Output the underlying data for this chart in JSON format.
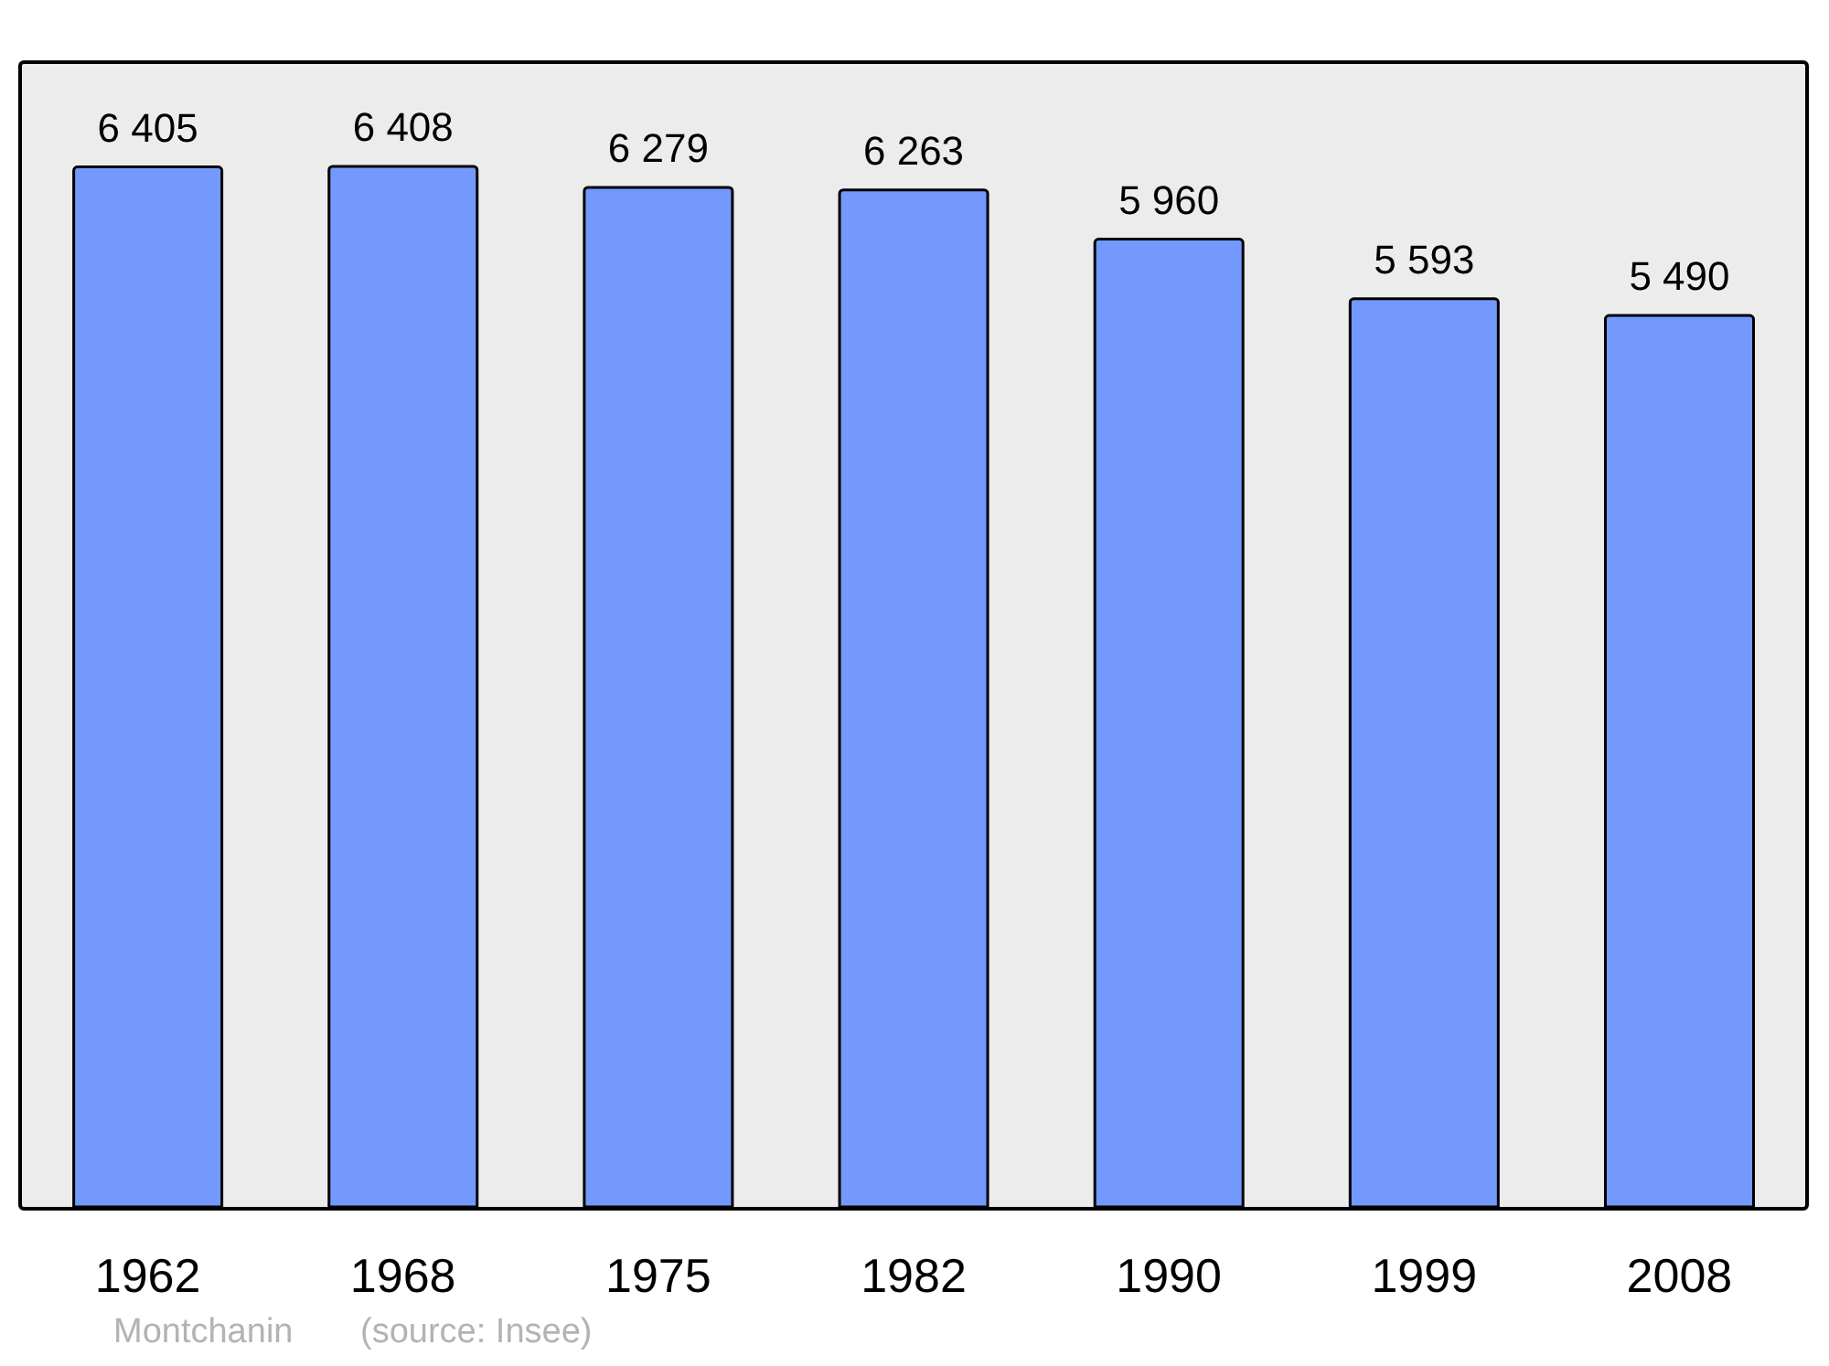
{
  "chart_data": {
    "type": "bar",
    "categories": [
      "1962",
      "1968",
      "1975",
      "1982",
      "1990",
      "1999",
      "2008"
    ],
    "values": [
      6405,
      6408,
      6279,
      6263,
      5960,
      5593,
      5490
    ],
    "value_labels": [
      "6 405",
      "6 408",
      "6 279",
      "6 263",
      "5 960",
      "5 593",
      "5 490"
    ],
    "color": "#7399ff",
    "ylim": [
      0,
      7050
    ],
    "annotations": [
      "Montchanin",
      "(source: Insee)"
    ]
  }
}
